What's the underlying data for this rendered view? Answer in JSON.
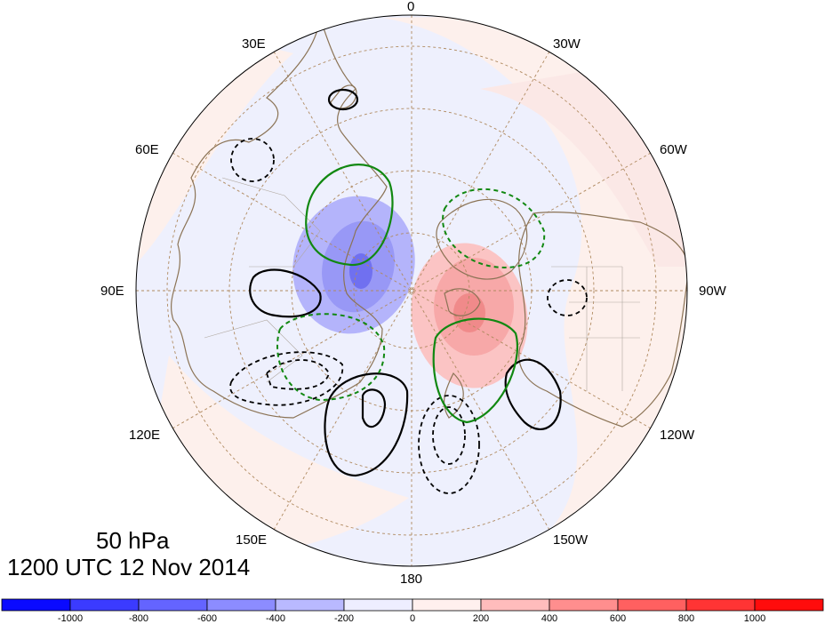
{
  "map": {
    "projection": "north-polar-stereographic",
    "longitude_labels": [
      "0",
      "30W",
      "60W",
      "90W",
      "120W",
      "150W",
      "180",
      "150E",
      "120E",
      "90E",
      "60E",
      "30E"
    ]
  },
  "title": {
    "level": "50 hPa",
    "time": "1200 UTC 12 Nov 2014"
  },
  "colorbar": {
    "ticks": [
      "-1000",
      "-800",
      "-600",
      "-400",
      "-200",
      "0",
      "200",
      "400",
      "600",
      "800",
      "1000"
    ],
    "colors": [
      "#0a0aff",
      "#3b3bff",
      "#6464ff",
      "#8c8cff",
      "#b9b9ff",
      "#eeeeff",
      "#fff0ee",
      "#ffbcbc",
      "#ff8e8e",
      "#ff6060",
      "#ff3434",
      "#ff0c0c"
    ]
  },
  "colors": {
    "coast": "#8b7355",
    "grid": "#b08a60",
    "positive_contour": "#000000",
    "negative_contour": "#008000",
    "ocean_tint_blue": "#eceffd",
    "ocean_tint_red": "#fdefea"
  }
}
